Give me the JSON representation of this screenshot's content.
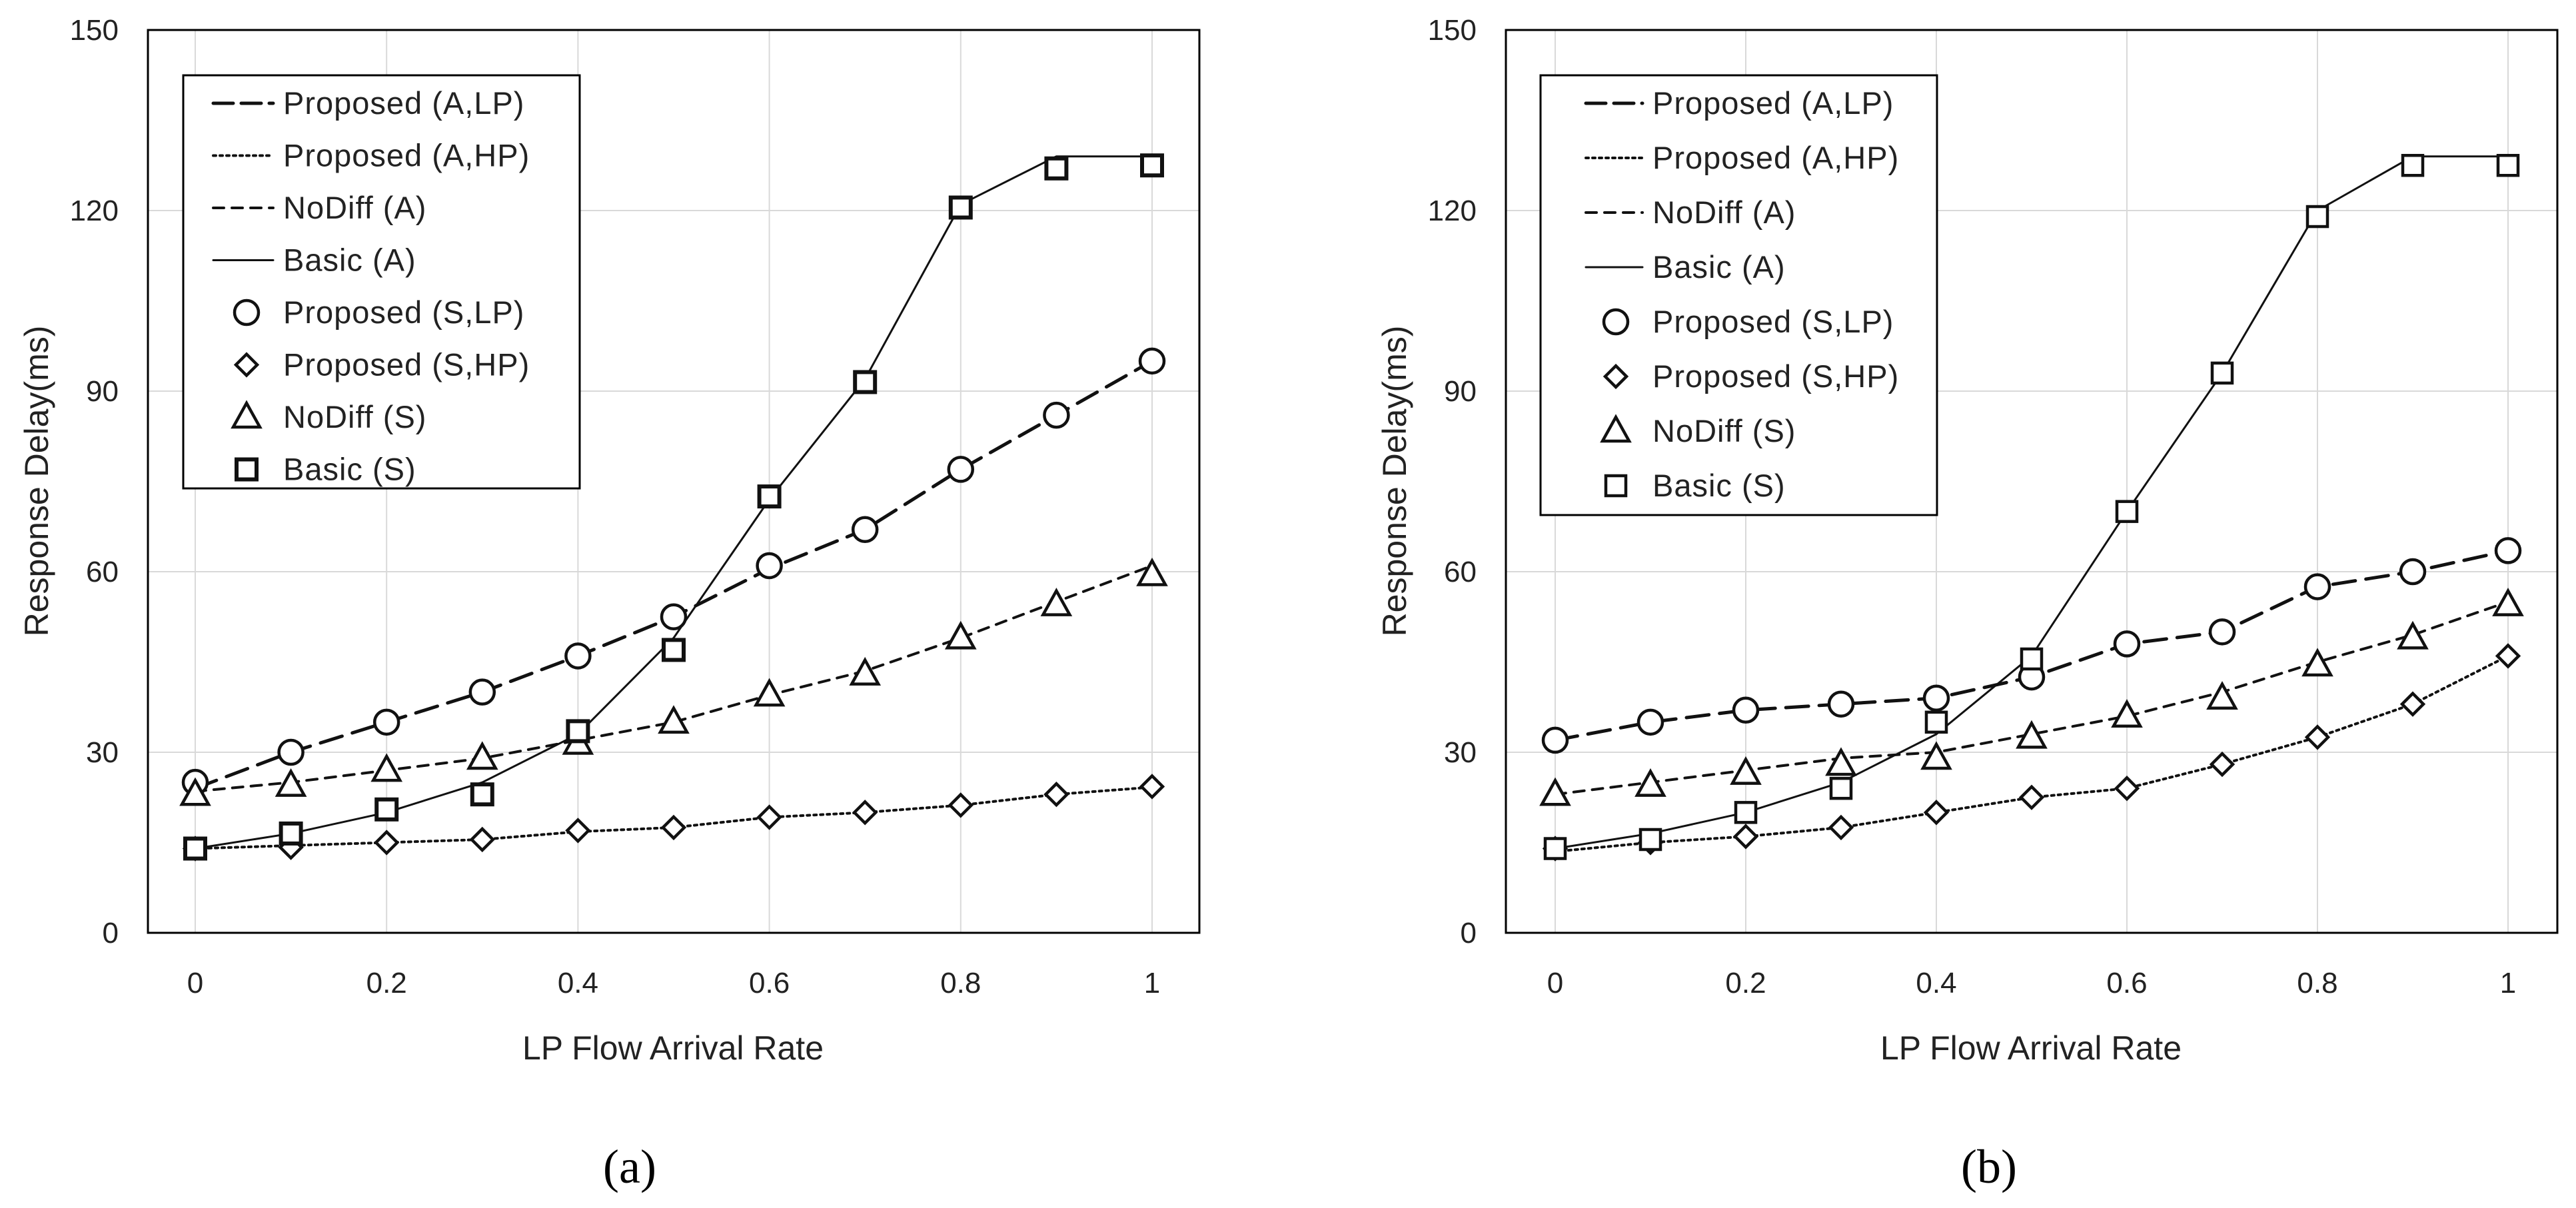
{
  "chart_data": [
    {
      "type": "line",
      "panel_label": "(a)",
      "xlabel": "LP Flow Arrival Rate",
      "ylabel": "Response Delay(ms)",
      "x": [
        0,
        0.1,
        0.2,
        0.3,
        0.4,
        0.5,
        0.6,
        0.7,
        0.8,
        0.9,
        1
      ],
      "xticks": [
        "0",
        "0.2",
        "0.4",
        "0.6",
        "0.8",
        "1"
      ],
      "yticks": [
        "0",
        "30",
        "60",
        "90",
        "120",
        "150"
      ],
      "xlim": [
        0,
        1
      ],
      "ylim": [
        0,
        150
      ],
      "grid": true,
      "legend_position": "top-left",
      "series": [
        {
          "name": "Proposed (A,LP)",
          "kind": "analysis",
          "style": "longdash",
          "values": [
            24,
            30,
            35,
            40,
            46,
            52.5,
            60.5,
            67,
            77,
            86,
            95
          ]
        },
        {
          "name": "Proposed (A,HP)",
          "kind": "analysis",
          "style": "dotted",
          "values": [
            14,
            14.5,
            15,
            15.5,
            16.8,
            17.5,
            19.2,
            20,
            21.2,
            23,
            24.2
          ]
        },
        {
          "name": "NoDiff (A)",
          "kind": "analysis",
          "style": "shortdash",
          "values": [
            23.5,
            25,
            27,
            29,
            32,
            35,
            39.5,
            43.5,
            49,
            55,
            61
          ]
        },
        {
          "name": "Basic (A)",
          "kind": "analysis",
          "style": "solid",
          "values": [
            14,
            16.5,
            20,
            25,
            33,
            49,
            72,
            92,
            121,
            129,
            129
          ]
        },
        {
          "name": "Proposed (S,LP)",
          "kind": "simulation",
          "marker": "circle",
          "values": [
            25,
            30,
            35,
            40,
            46,
            52.5,
            61,
            67,
            77,
            86,
            95
          ]
        },
        {
          "name": "Proposed (S,HP)",
          "kind": "simulation",
          "marker": "diamond",
          "values": [
            14,
            14.2,
            15,
            15.5,
            17,
            17.5,
            19.2,
            20,
            21.2,
            23,
            24.3
          ]
        },
        {
          "name": "NoDiff (S)",
          "kind": "simulation",
          "marker": "triangle",
          "values": [
            23,
            24.5,
            27,
            29,
            31.5,
            35,
            39.5,
            43,
            49,
            54.5,
            59.5
          ]
        },
        {
          "name": "Basic (S)",
          "kind": "simulation",
          "marker": "square",
          "values": [
            14,
            16.5,
            20.5,
            23,
            33.5,
            47,
            72.5,
            91.5,
            120.5,
            127,
            127.5
          ]
        }
      ]
    },
    {
      "type": "line",
      "panel_label": "(b)",
      "xlabel": "LP Flow Arrival Rate",
      "ylabel": "Response Delay(ms)",
      "x": [
        0,
        0.1,
        0.2,
        0.3,
        0.4,
        0.5,
        0.6,
        0.7,
        0.8,
        0.9,
        1
      ],
      "xticks": [
        "0",
        "0.2",
        "0.4",
        "0.6",
        "0.8",
        "1"
      ],
      "yticks": [
        "0",
        "30",
        "60",
        "90",
        "120",
        "150"
      ],
      "xlim": [
        0,
        1
      ],
      "ylim": [
        0,
        150
      ],
      "grid": true,
      "legend_position": "top-left",
      "series": [
        {
          "name": "Proposed (A,LP)",
          "kind": "analysis",
          "style": "longdash",
          "values": [
            32,
            35,
            37,
            38,
            39,
            42.5,
            48,
            50,
            57.5,
            60,
            63.5
          ]
        },
        {
          "name": "Proposed (A,HP)",
          "kind": "analysis",
          "style": "dotted",
          "values": [
            13.5,
            15,
            16,
            17.5,
            20,
            22.5,
            24,
            28,
            32.5,
            38,
            46
          ]
        },
        {
          "name": "NoDiff (A)",
          "kind": "analysis",
          "style": "shortdash",
          "values": [
            23,
            25,
            27,
            29,
            30,
            33,
            36,
            40,
            45,
            49.5,
            55
          ]
        },
        {
          "name": "Basic (A)",
          "kind": "analysis",
          "style": "solid",
          "values": [
            14,
            16.5,
            20,
            25,
            33,
            46,
            70,
            93,
            120,
            129,
            129
          ]
        },
        {
          "name": "Proposed (S,LP)",
          "kind": "simulation",
          "marker": "circle",
          "values": [
            32,
            35,
            37,
            38,
            39,
            42.5,
            48,
            50,
            57.5,
            60,
            63.5
          ]
        },
        {
          "name": "Proposed (S,HP)",
          "kind": "simulation",
          "marker": "diamond",
          "values": [
            14,
            15,
            16,
            17.5,
            20,
            22.5,
            24,
            28,
            32.5,
            38,
            46
          ]
        },
        {
          "name": "NoDiff (S)",
          "kind": "simulation",
          "marker": "triangle",
          "values": [
            23,
            24.5,
            26.5,
            28,
            29,
            32.5,
            36,
            39,
            44.5,
            49,
            54.5
          ]
        },
        {
          "name": "Basic (S)",
          "kind": "simulation",
          "marker": "square",
          "values": [
            14,
            15.5,
            20,
            24,
            35,
            45.5,
            70,
            93,
            119,
            127.5,
            127.5
          ]
        }
      ]
    }
  ]
}
